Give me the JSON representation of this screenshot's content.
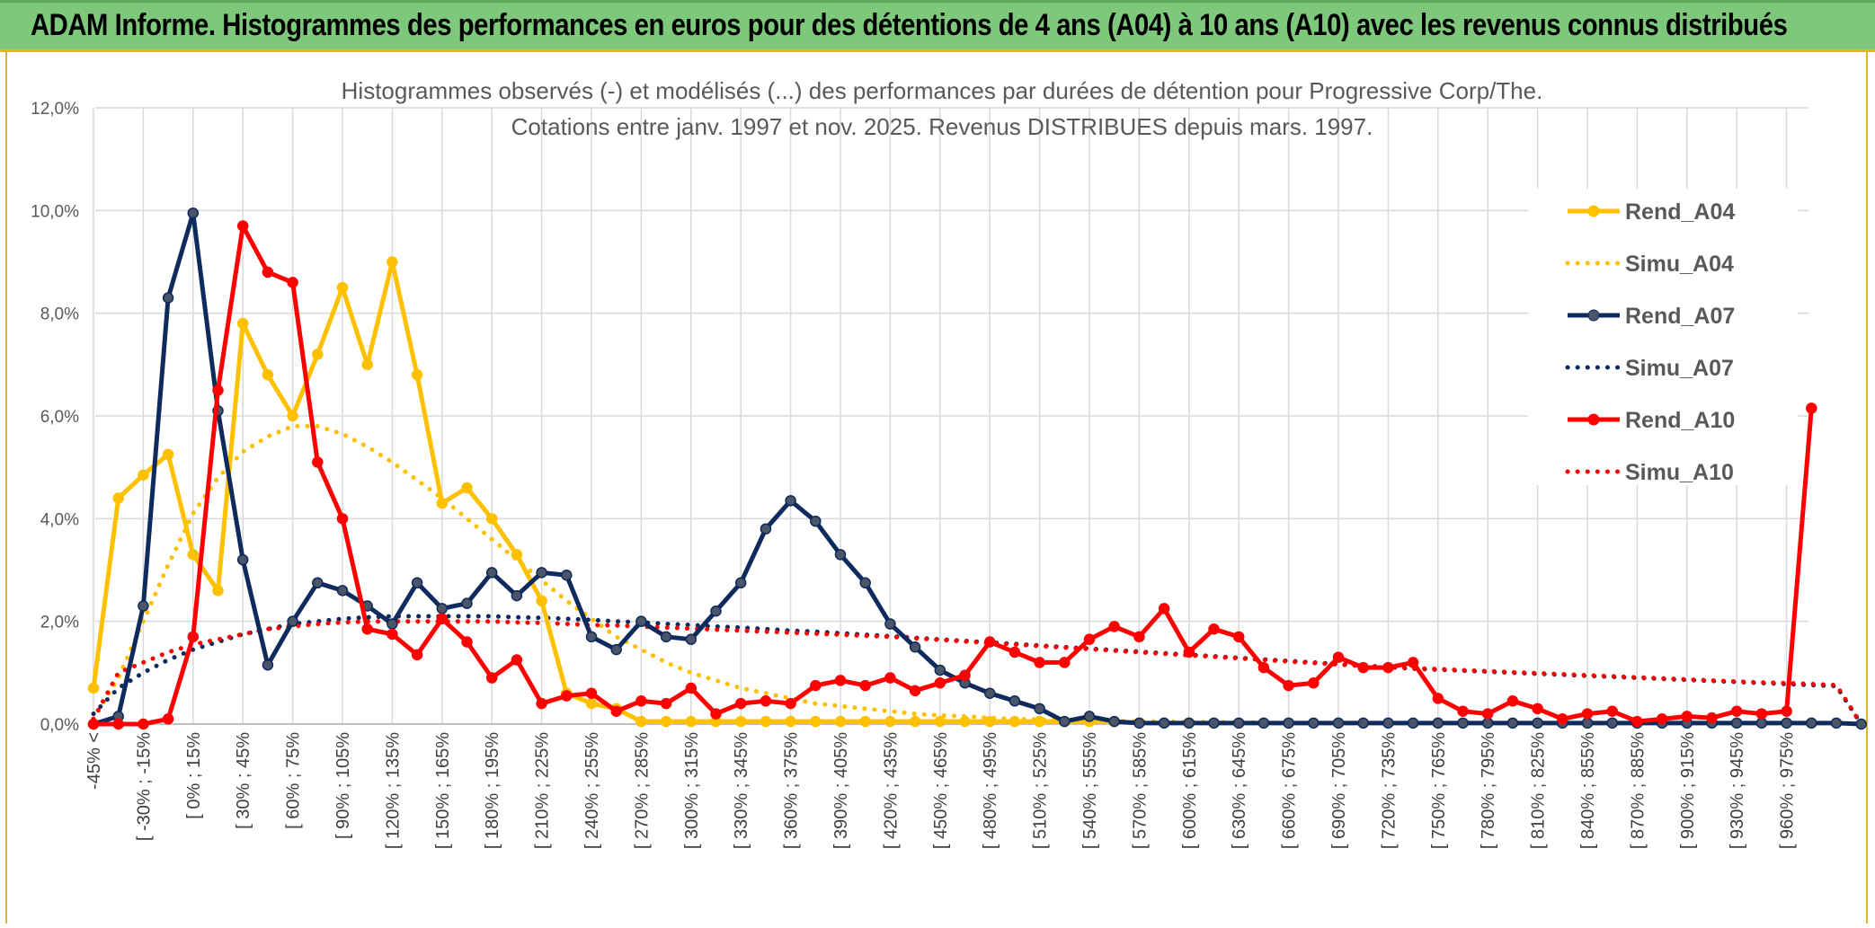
{
  "header": {
    "title": "ADAM Informe. Histogrammes des performances en euros pour des détentions de 4 ans (A04) à 10 ans (A10) avec les revenus connus distribués"
  },
  "chart_data": {
    "type": "line",
    "title": "Histogrammes observés (-) et modélisés (...) des performances par durées de détention pour Progressive Corp/The.",
    "subtitle": "Cotations entre janv. 1997 et nov. 2025. Revenus DISTRIBUES depuis mars. 1997.",
    "xlabel": "",
    "ylabel": "",
    "ylim": [
      0,
      12
    ],
    "yticks": [
      "0,0%",
      "2,0%",
      "4,0%",
      "6,0%",
      "8,0%",
      "10,0%",
      "12,0%"
    ],
    "grid": true,
    "legend_position": "right",
    "x_labels_shown": [
      "-45% <",
      "[ -30% ; -15%",
      "[ 0% ; 15%",
      "[ 30% ; 45%",
      "[ 60% ; 75%",
      "[ 90% ; 105%",
      "[ 120% ; 135%",
      "[ 150% ; 165%",
      "[ 180% ; 195%",
      "[ 210% ; 225%",
      "[ 240% ; 255%",
      "[ 270% ; 285%",
      "[ 300% ; 315%",
      "[ 330% ; 345%",
      "[ 360% ; 375%",
      "[ 390% ; 405%",
      "[ 420% ; 435%",
      "[ 450% ; 465%",
      "[ 480% ; 495%",
      "[ 510% ; 525%",
      "[ 540% ; 555%",
      "[ 570% ; 585%",
      "[ 600% ; 615%",
      "[ 630% ; 645%",
      "[ 660% ; 675%",
      "[ 690% ; 705%",
      "[ 720% ; 735%",
      "[ 750% ; 765%",
      "[ 780% ; 795%",
      "[ 810% ; 825%",
      "[ 840% ; 855%",
      "[ 870% ; 885%",
      "[ 900% ; 915%",
      "[ 930% ; 945%",
      "[ 960% ; 975%"
    ],
    "series": [
      {
        "name": "Rend_A04",
        "color": "#ffc000",
        "style": "solid",
        "values": [
          0.7,
          4.4,
          4.85,
          5.25,
          3.3,
          2.6,
          7.8,
          6.8,
          6.0,
          7.2,
          8.5,
          7.0,
          9.0,
          6.8,
          4.3,
          4.6,
          4.0,
          3.3,
          2.4,
          0.6,
          0.4,
          0.3,
          0.05,
          0.05,
          0.05,
          0.05,
          0.05,
          0.05,
          0.05,
          0.05,
          0.05,
          0.05,
          0.05,
          0.05,
          0.05,
          0.05,
          0.05,
          0.05,
          0.05,
          0.05,
          0.05,
          0.05
        ]
      },
      {
        "name": "Simu_A04",
        "color": "#ffc000",
        "style": "dotted",
        "values": [
          0.1,
          0.9,
          2.0,
          3.1,
          4.1,
          4.8,
          5.3,
          5.6,
          5.8,
          5.8,
          5.65,
          5.4,
          5.1,
          4.75,
          4.4,
          4.0,
          3.6,
          3.2,
          2.8,
          2.4,
          2.05,
          1.7,
          1.45,
          1.2,
          1.0,
          0.85,
          0.7,
          0.6,
          0.5,
          0.4,
          0.35,
          0.3,
          0.25,
          0.2,
          0.17,
          0.15,
          0.12,
          0.1,
          0.09,
          0.08,
          0.07,
          0.06,
          0.05,
          0.05,
          0.04,
          0.04,
          0.03,
          0.03
        ]
      },
      {
        "name": "Rend_A07",
        "color": "#0f2a5c",
        "style": "solid",
        "values": [
          0.0,
          0.15,
          2.3,
          8.3,
          9.95,
          6.1,
          3.2,
          1.15,
          2.0,
          2.75,
          2.6,
          2.3,
          1.95,
          2.75,
          2.25,
          2.35,
          2.95,
          2.5,
          2.95,
          2.9,
          1.7,
          1.45,
          2.0,
          1.7,
          1.65,
          2.2,
          2.75,
          3.8,
          4.35,
          3.95,
          3.3,
          2.75,
          1.95,
          1.5,
          1.05,
          0.8,
          0.6,
          0.45,
          0.3,
          0.05,
          0.15,
          0.05,
          0.02,
          0.02,
          0.02,
          0.02,
          0.02,
          0.02,
          0.02,
          0.02,
          0.02,
          0.02,
          0.02,
          0.02,
          0.02,
          0.02,
          0.02,
          0.02,
          0.02,
          0.02,
          0.02,
          0.02,
          0.02,
          0.02,
          0.02,
          0.02,
          0.02,
          0.02,
          0.02,
          0.02,
          0.02,
          0.0
        ]
      },
      {
        "name": "Simu_A07",
        "color": "#0f2a5c",
        "style": "dotted",
        "values": [
          0.2,
          0.7,
          1.0,
          1.25,
          1.45,
          1.6,
          1.75,
          1.85,
          1.95,
          2.0,
          2.05,
          2.08,
          2.1,
          2.1,
          2.1,
          2.1,
          2.1,
          2.08,
          2.07,
          2.05,
          2.03,
          2.0,
          1.98,
          1.95,
          1.93,
          1.9,
          1.88,
          1.85,
          1.82,
          1.8,
          1.77,
          1.74,
          1.71,
          1.68,
          1.65,
          1.62,
          1.59,
          1.56,
          1.53,
          1.5,
          1.47,
          1.44,
          1.41,
          1.38,
          1.35,
          1.32,
          1.29,
          1.26,
          1.23,
          1.2,
          1.17,
          1.14,
          1.11,
          1.08,
          1.06,
          1.04,
          1.02,
          1.0,
          0.98,
          0.96,
          0.94,
          0.92,
          0.9,
          0.88,
          0.86,
          0.84,
          0.82,
          0.8,
          0.78,
          0.76,
          0.74,
          0.0
        ]
      },
      {
        "name": "Rend_A10",
        "color": "#ff0000",
        "style": "solid",
        "values": [
          0.0,
          0.0,
          0.0,
          0.1,
          1.7,
          6.5,
          9.7,
          8.8,
          8.6,
          5.1,
          4.0,
          1.85,
          1.75,
          1.35,
          2.05,
          1.6,
          0.9,
          1.25,
          0.4,
          0.55,
          0.6,
          0.25,
          0.45,
          0.4,
          0.7,
          0.2,
          0.4,
          0.45,
          0.4,
          0.75,
          0.85,
          0.75,
          0.9,
          0.65,
          0.8,
          0.95,
          1.6,
          1.4,
          1.2,
          1.2,
          1.65,
          1.9,
          1.7,
          2.25,
          1.4,
          1.85,
          1.7,
          1.1,
          0.75,
          0.8,
          1.3,
          1.1,
          1.1,
          1.2,
          0.5,
          0.25,
          0.2,
          0.45,
          0.3,
          0.1,
          0.2,
          0.25,
          0.05,
          0.1,
          0.15,
          0.12,
          0.25,
          0.2,
          0.25,
          6.15
        ]
      },
      {
        "name": "Simu_A10",
        "color": "#ff0000",
        "style": "dotted",
        "values": [
          0.1,
          1.0,
          1.2,
          1.4,
          1.55,
          1.65,
          1.75,
          1.85,
          1.9,
          1.95,
          1.98,
          2.0,
          2.0,
          2.0,
          2.0,
          2.0,
          2.0,
          1.98,
          1.97,
          1.95,
          1.93,
          1.92,
          1.9,
          1.88,
          1.86,
          1.84,
          1.82,
          1.8,
          1.78,
          1.76,
          1.74,
          1.72,
          1.7,
          1.67,
          1.64,
          1.61,
          1.58,
          1.55,
          1.52,
          1.49,
          1.46,
          1.43,
          1.4,
          1.37,
          1.34,
          1.31,
          1.28,
          1.25,
          1.22,
          1.19,
          1.16,
          1.13,
          1.11,
          1.09,
          1.07,
          1.05,
          1.03,
          1.01,
          0.99,
          0.97,
          0.95,
          0.93,
          0.91,
          0.89,
          0.87,
          0.85,
          0.83,
          0.81,
          0.8,
          0.78,
          0.76,
          0.0
        ]
      }
    ]
  }
}
